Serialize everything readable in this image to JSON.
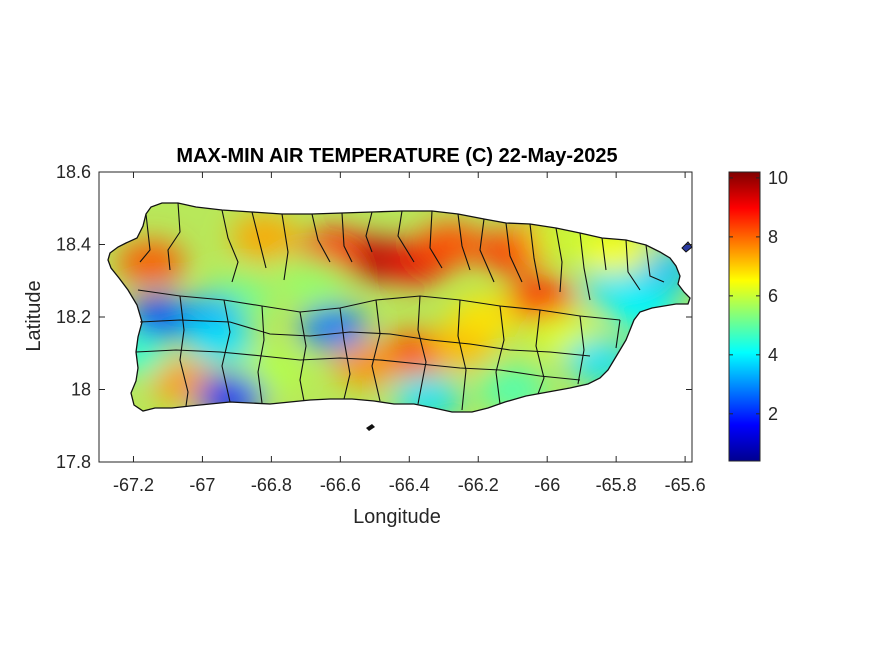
{
  "title": "MAX-MIN AIR TEMPERATURE (C) 22-May-2025",
  "x_axis": {
    "label": "Longitude",
    "range": [
      -67.3,
      -65.58
    ],
    "ticks": [
      -67.2,
      -67.0,
      -66.8,
      -66.6,
      -66.4,
      -66.2,
      -66.0,
      -65.8,
      -65.6
    ],
    "tick_labels": [
      "-67.2",
      "-67",
      "-66.8",
      "-66.6",
      "-66.4",
      "-66.2",
      "-66",
      "-65.8",
      "-65.6"
    ]
  },
  "y_axis": {
    "label": "Latitude",
    "range": [
      17.8,
      18.6
    ],
    "ticks": [
      17.8,
      18.0,
      18.2,
      18.4,
      18.6
    ],
    "tick_labels": [
      "17.8",
      "18",
      "18.2",
      "18.4",
      "18.6"
    ]
  },
  "colorbar": {
    "colormap": "jet",
    "range": [
      0.4,
      10.2
    ],
    "ticks": [
      2,
      4,
      6,
      8,
      10
    ],
    "tick_labels": [
      "2",
      "4",
      "6",
      "8",
      "10"
    ]
  },
  "chart_data": {
    "type": "heatmap",
    "title": "MAX-MIN AIR TEMPERATURE (C) 22-May-2025",
    "xlabel": "Longitude",
    "ylabel": "Latitude",
    "xlim": [
      -67.3,
      -65.58
    ],
    "ylim": [
      17.8,
      18.6
    ],
    "clim": [
      0.4,
      10.2
    ],
    "colormap": "jet",
    "grid": false,
    "regional_values": [
      {
        "lon": -66.5,
        "lat": 18.36,
        "value": 9.8
      },
      {
        "lon": -66.38,
        "lat": 18.35,
        "value": 9.2
      },
      {
        "lon": -66.62,
        "lat": 18.38,
        "value": 9.0
      },
      {
        "lon": -66.28,
        "lat": 18.4,
        "value": 8.3
      },
      {
        "lon": -66.1,
        "lat": 18.38,
        "value": 8.5
      },
      {
        "lon": -66.02,
        "lat": 18.25,
        "value": 8.6
      },
      {
        "lon": -66.38,
        "lat": 18.1,
        "value": 8.4
      },
      {
        "lon": -66.52,
        "lat": 18.07,
        "value": 7.6
      },
      {
        "lon": -67.15,
        "lat": 18.35,
        "value": 8.2
      },
      {
        "lon": -67.05,
        "lat": 18.02,
        "value": 7.5
      },
      {
        "lon": -66.82,
        "lat": 18.42,
        "value": 7.4
      },
      {
        "lon": -66.25,
        "lat": 18.12,
        "value": 7.2
      },
      {
        "lon": -66.0,
        "lat": 18.42,
        "value": 7.8
      },
      {
        "lon": -66.18,
        "lat": 18.2,
        "value": 6.8
      },
      {
        "lon": -65.95,
        "lat": 18.15,
        "value": 6.2
      },
      {
        "lon": -66.8,
        "lat": 18.05,
        "value": 5.8
      },
      {
        "lon": -66.9,
        "lat": 18.25,
        "value": 5.2
      },
      {
        "lon": -66.68,
        "lat": 18.3,
        "value": 5.5
      },
      {
        "lon": -67.12,
        "lat": 18.2,
        "value": 2.2
      },
      {
        "lon": -66.98,
        "lat": 18.2,
        "value": 3.2
      },
      {
        "lon": -66.62,
        "lat": 18.17,
        "value": 2.8
      },
      {
        "lon": -66.95,
        "lat": 18.13,
        "value": 3.8
      },
      {
        "lon": -67.2,
        "lat": 18.1,
        "value": 4.5
      },
      {
        "lon": -65.8,
        "lat": 18.28,
        "value": 3.8
      },
      {
        "lon": -65.72,
        "lat": 18.22,
        "value": 4.0
      },
      {
        "lon": -65.85,
        "lat": 18.08,
        "value": 3.8
      },
      {
        "lon": -65.66,
        "lat": 18.33,
        "value": 3.5
      },
      {
        "lon": -66.92,
        "lat": 17.98,
        "value": 2.0
      },
      {
        "lon": -66.35,
        "lat": 17.98,
        "value": 3.8
      },
      {
        "lon": -66.1,
        "lat": 18.0,
        "value": 4.8
      },
      {
        "lon": -65.95,
        "lat": 18.42,
        "value": 6.0
      },
      {
        "lon": -65.8,
        "lat": 18.38,
        "value": 6.5
      }
    ]
  }
}
